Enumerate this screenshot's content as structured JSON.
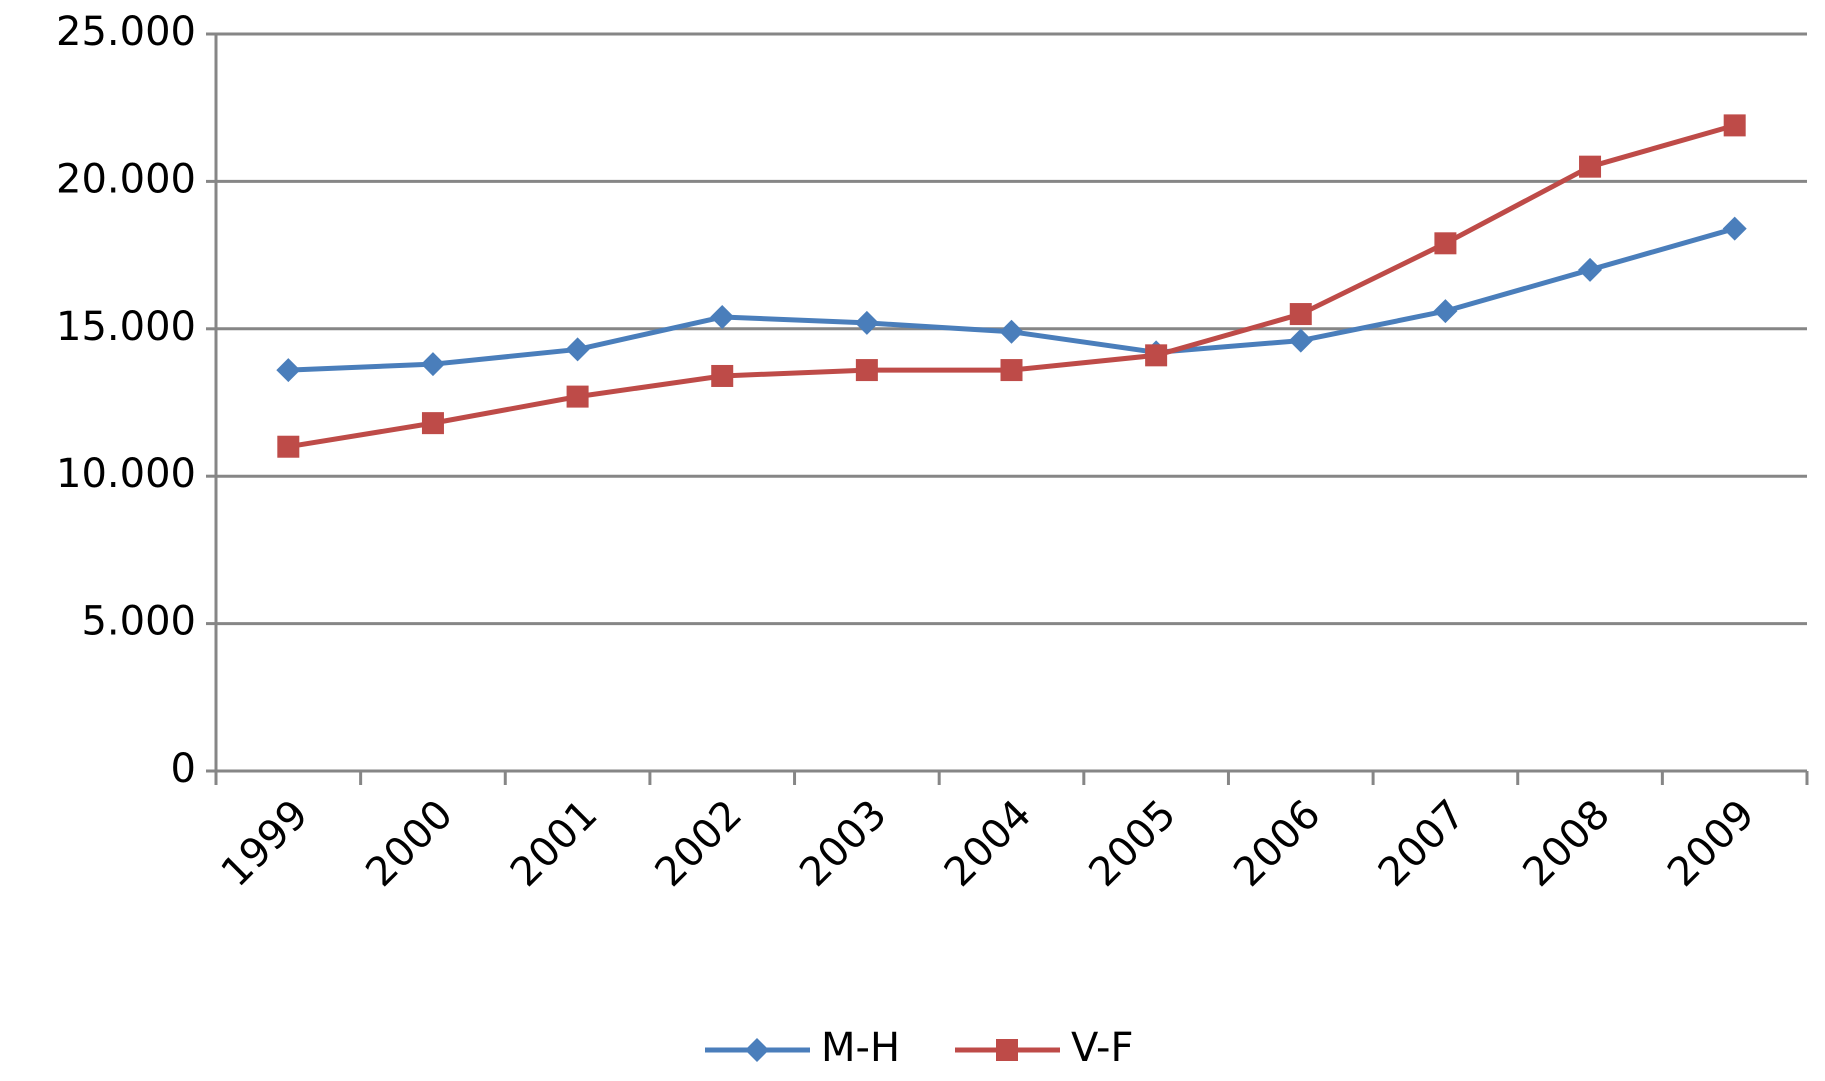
{
  "chart_data": {
    "type": "line",
    "categories": [
      "1999",
      "2000",
      "2001",
      "2002",
      "2003",
      "2004",
      "2005",
      "2006",
      "2007",
      "2008",
      "2009"
    ],
    "series": [
      {
        "name": "M-H",
        "color": "#4a7ebb",
        "marker": "diamond",
        "values": [
          13600,
          13800,
          14300,
          15400,
          15200,
          14900,
          14200,
          14600,
          15600,
          17000,
          18400
        ]
      },
      {
        "name": "V-F",
        "color": "#be4b48",
        "marker": "square",
        "values": [
          11000,
          11800,
          12700,
          13400,
          13600,
          13600,
          14100,
          15500,
          17900,
          20500,
          21900
        ]
      }
    ],
    "ylim": [
      0,
      25000
    ],
    "yticks": [
      0,
      {
        "value": 5000,
        "label": "5.000"
      },
      {
        "value": 10000,
        "label": "10.000"
      },
      {
        "value": 15000,
        "label": "15.000"
      },
      {
        "value": 20000,
        "label": "20.000"
      },
      {
        "value": 25000,
        "label": "25.000"
      }
    ],
    "grid": true,
    "legend": "bottom"
  }
}
